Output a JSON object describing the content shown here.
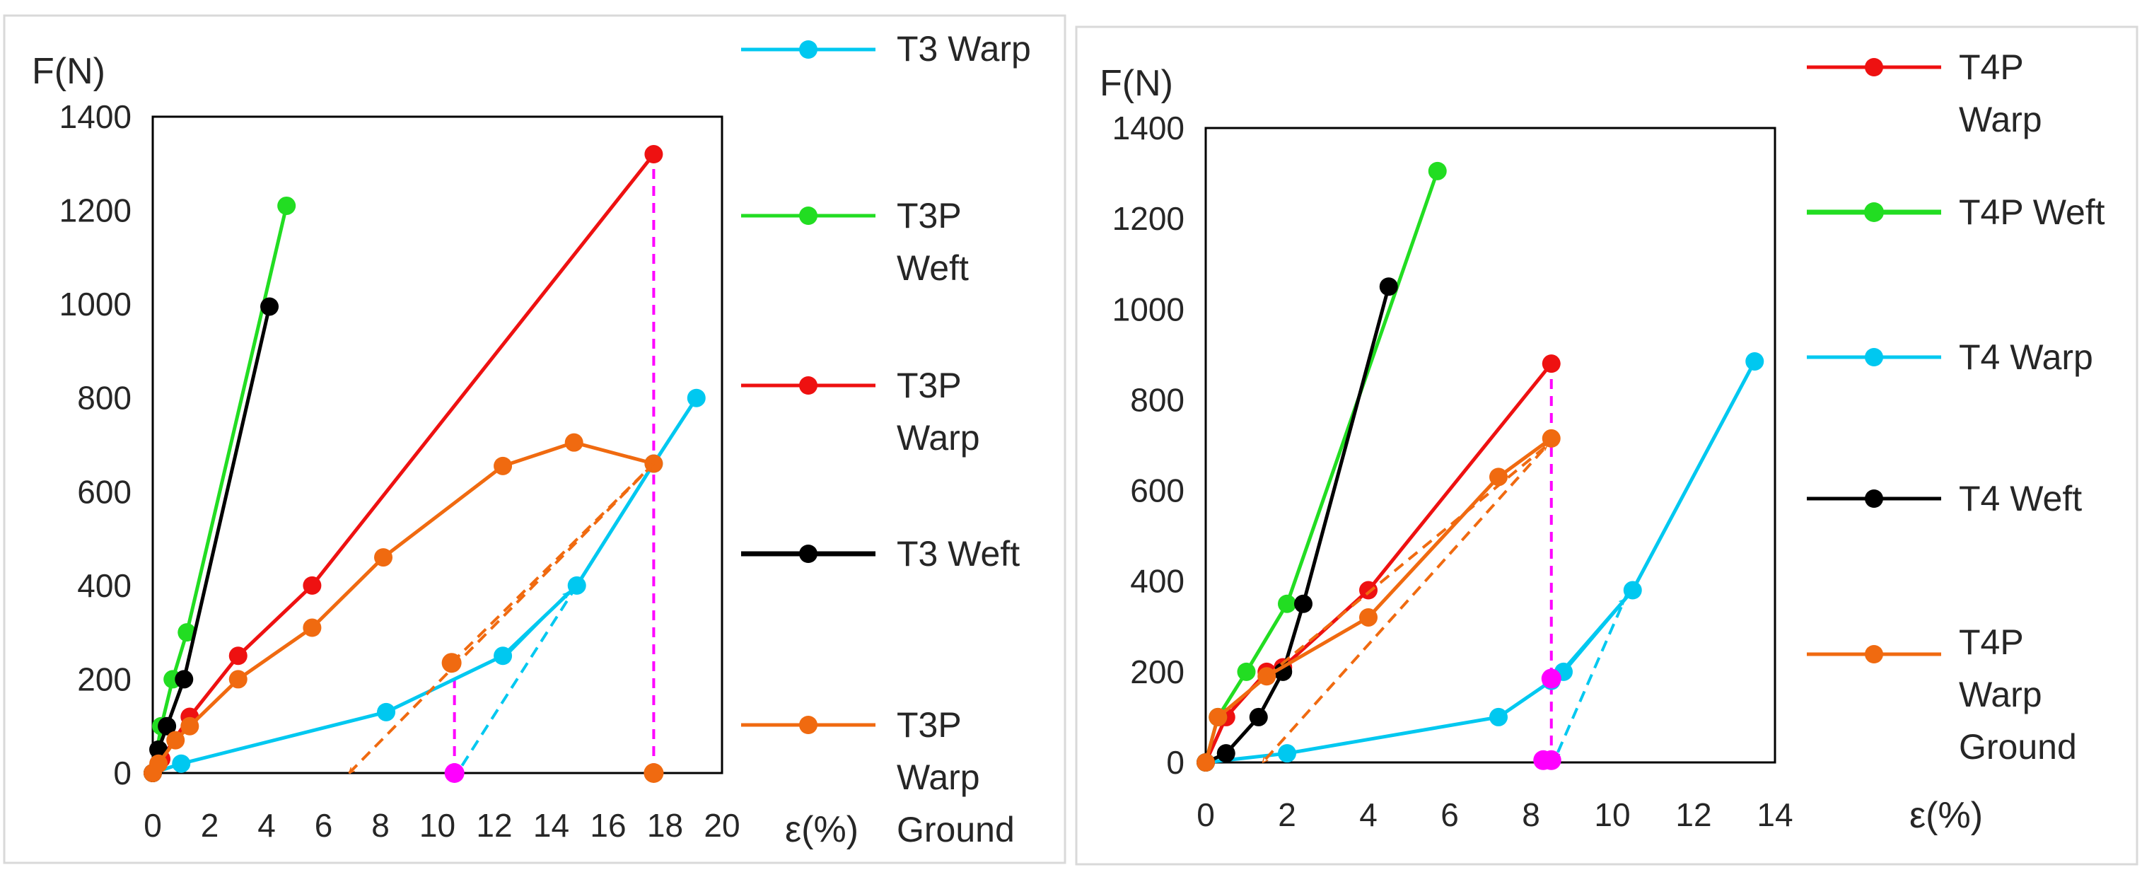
{
  "chart_data": [
    {
      "type": "line",
      "ylabel": "F(N)",
      "xlabel": "ε(%)",
      "xlim": [
        0,
        20
      ],
      "ylim": [
        0,
        1400
      ],
      "xticks": [
        "0",
        "2",
        "4",
        "6",
        "8",
        "10",
        "12",
        "14",
        "16",
        "18",
        "20"
      ],
      "yticks": [
        "0",
        "200",
        "400",
        "600",
        "800",
        "1000",
        "1200",
        "1400"
      ],
      "grid": false,
      "legend_position": "right",
      "series": [
        {
          "name": "T3 Warp",
          "color": "#00C8F0",
          "x": [
            0,
            1,
            8.2,
            12.3,
            14.9,
            17.6,
            19.1
          ],
          "y": [
            0,
            20,
            130,
            250,
            400,
            660,
            800
          ]
        },
        {
          "name": "T3P Weft",
          "color": "#22DD22",
          "x": [
            0,
            0.3,
            0.7,
            1.2,
            4.7
          ],
          "y": [
            0,
            100,
            200,
            300,
            1210
          ]
        },
        {
          "name": "T3P Warp",
          "color": "#EE1111",
          "x": [
            0,
            0.3,
            1.3,
            3,
            5.6,
            17.6
          ],
          "y": [
            0,
            30,
            120,
            250,
            400,
            1320
          ]
        },
        {
          "name": "T3 Weft",
          "color": "#000000",
          "x": [
            0,
            0.2,
            0.5,
            1.1,
            4.1
          ],
          "y": [
            0,
            50,
            100,
            200,
            995
          ]
        },
        {
          "name": "T3P Warp Ground",
          "color": "#F06A10",
          "x": [
            0,
            0.2,
            0.8,
            1.3,
            3,
            5.6,
            8.1,
            12.3,
            14.8,
            17.6
          ],
          "y": [
            0,
            20,
            70,
            100,
            200,
            310,
            460,
            655,
            705,
            660
          ]
        }
      ],
      "points": [
        {
          "label": "T3P Warp Ground",
          "x": 10.5,
          "y": 235,
          "color": "#F06A10"
        },
        {
          "label": "T3P Warp Ground",
          "x": 17.6,
          "y": 0,
          "color": "#F06A10"
        },
        {
          "label": "",
          "x": 10.6,
          "y": 0,
          "color": "#FF00FF"
        }
      ],
      "guides": [
        {
          "x": 10.6,
          "y0": 0,
          "y1": 235,
          "color": "#FF00FF",
          "style": "dashed"
        },
        {
          "x": 17.6,
          "y0": 0,
          "y1": 1320,
          "color": "#FF00FF",
          "style": "dashed"
        }
      ],
      "arrows": [
        {
          "x1": 17.6,
          "y1": 660,
          "x2": 6.9,
          "y2": 0,
          "color": "#F06A10",
          "style": "dashed"
        },
        {
          "x1": 10.5,
          "y1": 235,
          "x2": 17.6,
          "y2": 660,
          "color": "#F06A10",
          "style": "dashed"
        },
        {
          "x1": 14.9,
          "y1": 400,
          "x2": 10.7,
          "y2": 0,
          "color": "#00C8F0",
          "style": "dashed"
        },
        {
          "x1": 12.4,
          "y1": 250,
          "x2": 14.6,
          "y2": 385,
          "color": "#00C8F0",
          "style": "solid"
        }
      ]
    },
    {
      "type": "line",
      "ylabel": "F(N)",
      "xlabel": "ε(%)",
      "xlim": [
        0,
        14
      ],
      "ylim": [
        0,
        1400
      ],
      "xticks": [
        "0",
        "2",
        "4",
        "6",
        "8",
        "10",
        "12",
        "14"
      ],
      "yticks": [
        "0",
        "200",
        "400",
        "600",
        "800",
        "1000",
        "1200",
        "1400"
      ],
      "grid": false,
      "legend_position": "right",
      "series": [
        {
          "name": "T4P Warp",
          "color": "#EE1111",
          "x": [
            0,
            0.5,
            1.5,
            1.9,
            4,
            8.5
          ],
          "y": [
            0,
            100,
            200,
            210,
            380,
            880
          ]
        },
        {
          "name": "T4P Weft",
          "color": "#22DD22",
          "x": [
            0,
            0.3,
            1,
            2,
            5.7
          ],
          "y": [
            0,
            100,
            200,
            350,
            1305
          ]
        },
        {
          "name": "T4 Warp",
          "color": "#00C8F0",
          "x": [
            0,
            2,
            7.2,
            8.5,
            8.8,
            10.5,
            13.5
          ],
          "y": [
            0,
            20,
            100,
            180,
            200,
            380,
            885
          ]
        },
        {
          "name": "T4 Weft",
          "color": "#000000",
          "x": [
            0,
            0.5,
            1.3,
            1.9,
            2.4,
            4.5
          ],
          "y": [
            0,
            20,
            100,
            200,
            350,
            1050
          ]
        },
        {
          "name": "T4P Warp Ground",
          "color": "#F06A10",
          "x": [
            0,
            0.3,
            1.5,
            4,
            7.2,
            8.5
          ],
          "y": [
            0,
            100,
            190,
            320,
            630,
            715
          ]
        }
      ],
      "points": [
        {
          "label": "",
          "x": 8.5,
          "y": 185,
          "color": "#FF00FF"
        },
        {
          "label": "",
          "x": 8.3,
          "y": 5,
          "color": "#FF00FF"
        },
        {
          "label": "",
          "x": 8.5,
          "y": 5,
          "color": "#FF00FF"
        }
      ],
      "guides": [
        {
          "x": 8.5,
          "y0": 0,
          "y1": 880,
          "color": "#FF00FF",
          "style": "dashed"
        }
      ],
      "arrows": [
        {
          "x1": 8.3,
          "y1": 690,
          "x2": 1.4,
          "y2": 0,
          "color": "#F06A10",
          "style": "dashed"
        },
        {
          "x1": 10.4,
          "y1": 380,
          "x2": 8.6,
          "y2": 10,
          "color": "#00C8F0",
          "style": "dashed"
        },
        {
          "x1": 8.6,
          "y1": 185,
          "x2": 10.3,
          "y2": 360,
          "color": "#00C8F0",
          "style": "solid"
        },
        {
          "x1": 1.5,
          "y1": 190,
          "x2": 8.4,
          "y2": 700,
          "color": "#F06A10",
          "style": "dashed"
        }
      ]
    }
  ]
}
